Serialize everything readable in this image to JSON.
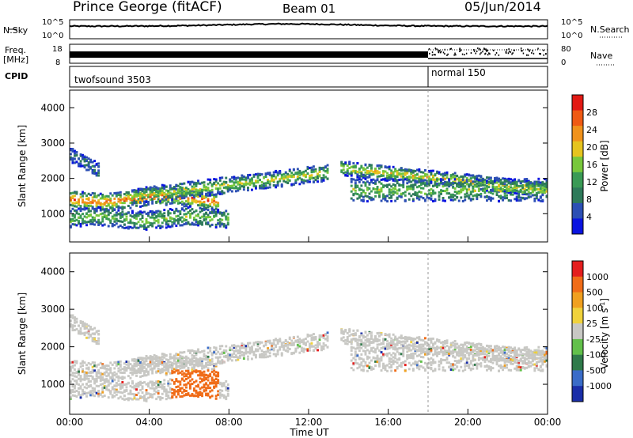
{
  "header": {
    "station": "Prince George (fitACF)",
    "beam": "Beam 01",
    "date": "05/Jun/2014"
  },
  "strips": {
    "nsky_label": "N.Sky",
    "nsky_ticks": [
      "10^5",
      "10^0"
    ],
    "nsearch_label": "N.Search",
    "freq_label_1": "Freq.",
    "freq_label_2": "[MHz]",
    "freq_ticks": [
      "18",
      "8"
    ],
    "nave_ticks": [
      "80",
      "0"
    ],
    "nave_label": "Nave",
    "cpid_label": "CPID",
    "cpid_segments": [
      {
        "label": "twofsound 3503",
        "start_hour": 0,
        "end_hour": 18.0
      },
      {
        "label": "normal 150",
        "start_hour": 18.0,
        "end_hour": 24
      }
    ]
  },
  "x_ticks": [
    "00:00",
    "04:00",
    "08:00",
    "12:00",
    "16:00",
    "20:00",
    "00:00"
  ],
  "x_label": "Time UT",
  "colors": {
    "power": [
      "#0a14e0",
      "#2c4fb4",
      "#2e7a5a",
      "#3a9a55",
      "#78c83c",
      "#e6c41e",
      "#f0921c",
      "#ef5a14",
      "#e21a14"
    ],
    "velocity": [
      "#1a2ea8",
      "#3a6cc8",
      "#2f7a4a",
      "#62c04a",
      "#c8c8c4",
      "#f0d23c",
      "#f0a020",
      "#f06c18",
      "#e41e1e"
    ]
  },
  "chart_data": [
    {
      "type": "heatmap",
      "panel": "power",
      "ylabel": "Slant Range [km]",
      "xlabel": "",
      "ylim": [
        200,
        4500
      ],
      "y_ticks": [
        1000,
        2000,
        3000,
        4000
      ],
      "xlim_hours": [
        0,
        24
      ],
      "colorbar_label": "Power [dB]",
      "colorbar_ticks": [
        "28",
        "24",
        "20",
        "16",
        "12",
        "8",
        "4"
      ],
      "colorbar_range": [
        0,
        30
      ],
      "grid": false
    },
    {
      "type": "heatmap",
      "panel": "velocity",
      "ylabel": "Slant Range [km]",
      "xlabel": "Time UT",
      "ylim": [
        200,
        4500
      ],
      "y_ticks": [
        1000,
        2000,
        3000,
        4000
      ],
      "xlim_hours": [
        0,
        24
      ],
      "colorbar_label": "Velocity [m s",
      "colorbar_label_sup": "-1",
      "colorbar_label_end": "]",
      "colorbar_ticks": [
        "1000",
        "500",
        "100",
        "25",
        "-25",
        "-100",
        "-500",
        "-1000"
      ],
      "grid": false
    }
  ]
}
